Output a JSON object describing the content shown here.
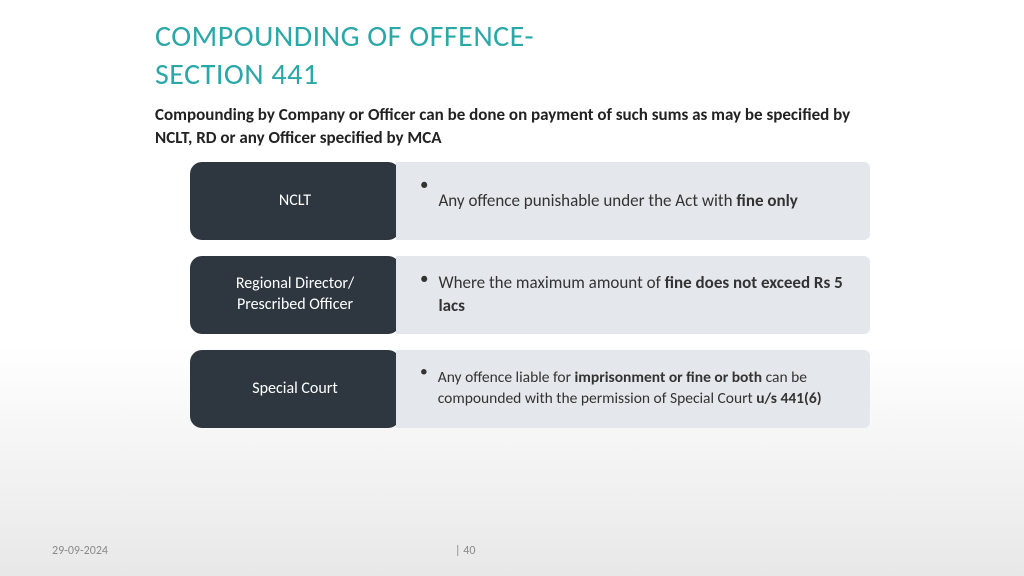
{
  "title": {
    "line1": "COMPOUNDING OF OFFENCE-",
    "line2": "SECTION 441",
    "color": "#2aa8a8",
    "fontsize": 30
  },
  "subtitle": "Compounding by Company or Officer can be done on payment of such sums as may be specified by NCLT, RD or any Officer specified by MCA",
  "rows": [
    {
      "label": "NCLT",
      "desc_prefix": "Any offence punishable under the Act with ",
      "desc_bold1": "fine only",
      "desc_mid": "",
      "desc_bold2": "",
      "desc_suffix": ""
    },
    {
      "label": "Regional Director/ Prescribed Officer",
      "desc_prefix": "Where the maximum amount of ",
      "desc_bold1": "fine does not exceed Rs 5 lacs",
      "desc_mid": "",
      "desc_bold2": "",
      "desc_suffix": ""
    },
    {
      "label": "Special Court",
      "desc_prefix": "Any offence liable for ",
      "desc_bold1": "imprisonment or fine or both",
      "desc_mid": " can be compounded with the permission of Special Court ",
      "desc_bold2": "u/s 441(6)",
      "desc_suffix": ""
    }
  ],
  "colors": {
    "label_bg": "#2e3740",
    "label_text": "#ffffff",
    "desc_bg": "#e4e7ec",
    "desc_text": "#333333",
    "background_top": "#ffffff",
    "background_bottom": "#e8e8e8"
  },
  "footer": {
    "date": "29-09-2024",
    "page_prefix": "|  ",
    "page": "40"
  }
}
